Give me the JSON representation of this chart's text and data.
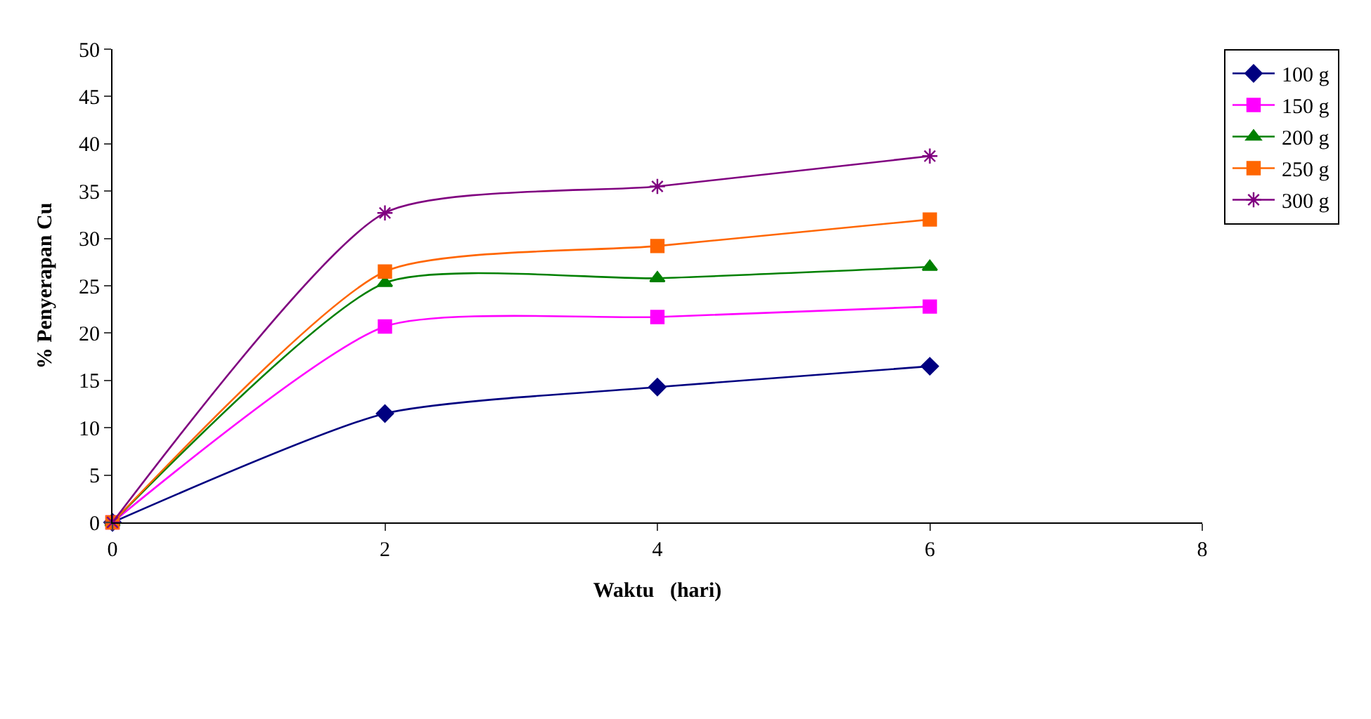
{
  "chart_data": {
    "type": "line",
    "xlabel": "Waktu   (hari)",
    "ylabel": "% Penyerapan Cu",
    "x": [
      0,
      2,
      4,
      6
    ],
    "series": [
      {
        "name": "100 g",
        "color": "#000080",
        "marker": "diamond",
        "values": [
          0,
          11.5,
          14.3,
          16.5
        ]
      },
      {
        "name": "150 g",
        "color": "#ff00ff",
        "marker": "square",
        "values": [
          0,
          20.7,
          21.7,
          22.8
        ]
      },
      {
        "name": "200 g",
        "color": "#008000",
        "marker": "triangle",
        "values": [
          0,
          25.3,
          25.8,
          27.0
        ]
      },
      {
        "name": "250 g",
        "color": "#ff6600",
        "marker": "square",
        "values": [
          0,
          26.5,
          29.2,
          32.0
        ]
      },
      {
        "name": "300 g",
        "color": "#800080",
        "marker": "cross",
        "values": [
          0,
          32.7,
          35.5,
          38.7
        ]
      }
    ],
    "xlim": [
      0,
      8
    ],
    "xticks": [
      0,
      2,
      4,
      6,
      8
    ],
    "ylim": [
      0,
      50
    ],
    "yticks": [
      0,
      5,
      10,
      15,
      20,
      25,
      30,
      35,
      40,
      45,
      50
    ],
    "grid": false,
    "legend": "right"
  }
}
